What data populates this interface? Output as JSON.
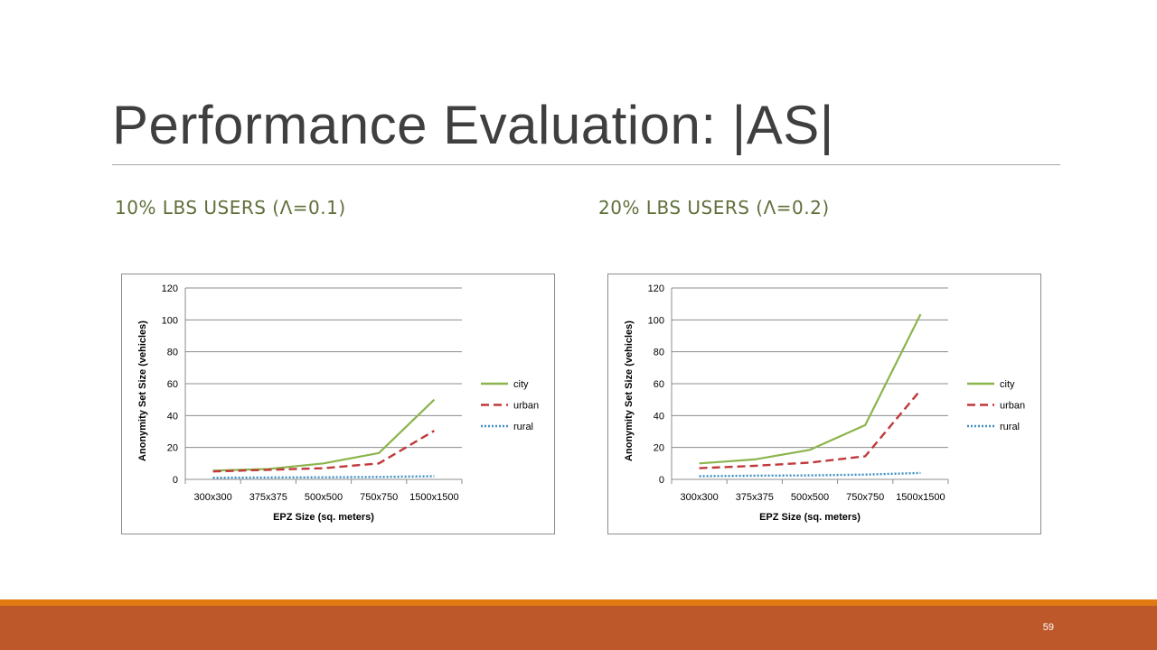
{
  "slide": {
    "title": "Performance Evaluation: |AS|",
    "page_number": "59"
  },
  "colors": {
    "title_text": "#3f3f3f",
    "subtitle_text": "#5f6f3a",
    "footer_bar": "#bd582b",
    "footer_accent": "#e07b12",
    "city": "#8cb44c",
    "urban": "#c0393b",
    "rural": "#3f8fc4"
  },
  "subtitles": {
    "left": "10% LBS USERS (Λ=0.1)",
    "right": "20% LBS USERS (Λ=0.2)"
  },
  "chart_data": [
    {
      "type": "line",
      "title": "",
      "xlabel": "EPZ Size (sq. meters)",
      "ylabel": "Anonymity Set Size (vehicles)",
      "categories": [
        "300x300",
        "375x375",
        "500x500",
        "750x750",
        "1500x1500"
      ],
      "ylim": [
        0,
        120
      ],
      "yticks": [
        "0",
        "20",
        "40",
        "60",
        "80",
        "100",
        "120"
      ],
      "grid": "horizontal",
      "legend_position": "right",
      "series": [
        {
          "name": "city",
          "values": [
            5.5,
            6.5,
            10,
            16.5,
            50
          ],
          "dash": "solid"
        },
        {
          "name": "urban",
          "values": [
            5,
            6,
            7,
            10,
            30.5
          ],
          "dash": "dashed"
        },
        {
          "name": "rural",
          "values": [
            1,
            1.2,
            1.3,
            1.5,
            2
          ],
          "dash": "dotted"
        }
      ]
    },
    {
      "type": "line",
      "title": "",
      "xlabel": "EPZ Size (sq. meters)",
      "ylabel": "Anonymity Set Size (vehicles)",
      "categories": [
        "300x300",
        "375x375",
        "500x500",
        "750x750",
        "1500x1500"
      ],
      "ylim": [
        0,
        120
      ],
      "yticks": [
        "0",
        "20",
        "40",
        "60",
        "80",
        "100",
        "120"
      ],
      "grid": "horizontal",
      "legend_position": "right",
      "series": [
        {
          "name": "city",
          "values": [
            10,
            12.5,
            18.5,
            34,
            103.5
          ],
          "dash": "solid"
        },
        {
          "name": "urban",
          "values": [
            7,
            8.5,
            10.5,
            14.5,
            56
          ],
          "dash": "dashed"
        },
        {
          "name": "rural",
          "values": [
            2,
            2.3,
            2.5,
            3,
            4
          ],
          "dash": "dotted"
        }
      ]
    }
  ]
}
